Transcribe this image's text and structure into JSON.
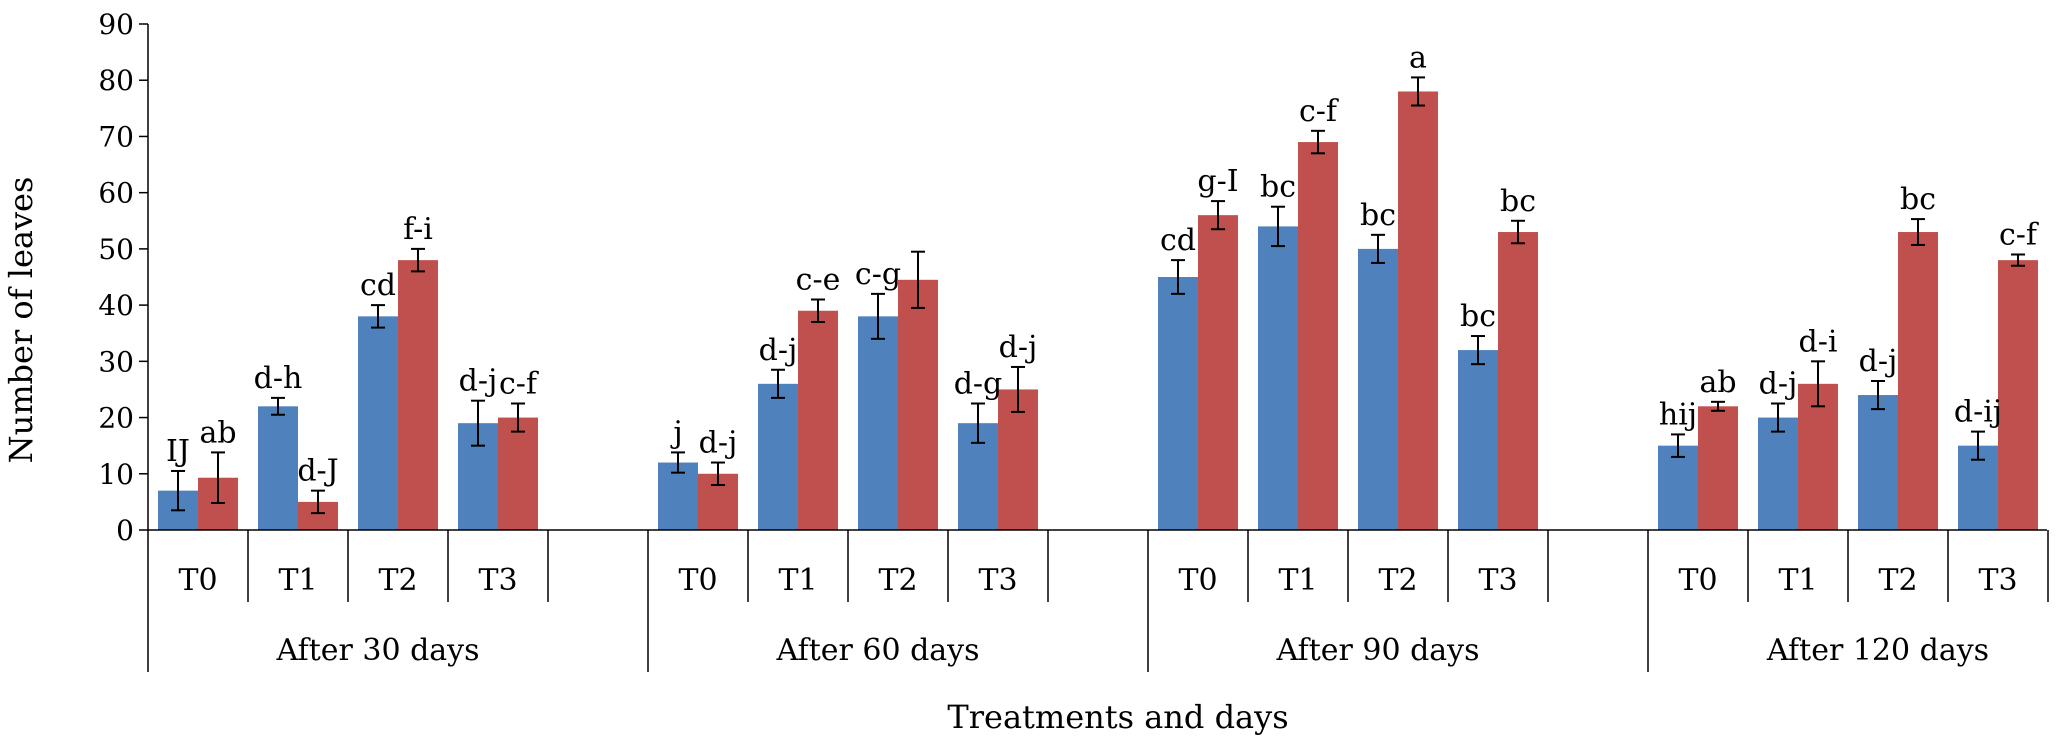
{
  "chart_data": {
    "type": "bar",
    "xlabel": "Treatments and days",
    "ylabel": "Number of leaves",
    "ylim": [
      0,
      90
    ],
    "yticks": [
      0,
      10,
      20,
      30,
      40,
      50,
      60,
      70,
      80,
      90
    ],
    "colors": {
      "series1": "#4f81bd",
      "series2": "#c0504d"
    },
    "groups": [
      {
        "label": "After 30 days",
        "categories": [
          "T0",
          "T1",
          "T2",
          "T3"
        ],
        "series1": {
          "values": [
            7,
            22,
            38,
            19
          ],
          "errors": [
            3.5,
            1.5,
            2,
            4
          ],
          "labels": [
            "IJ",
            "d-h",
            "cd",
            "d-j"
          ]
        },
        "series2": {
          "values": [
            9.3,
            5,
            48,
            20
          ],
          "errors": [
            4.5,
            2,
            2,
            2.5
          ],
          "labels": [
            "ab",
            "d-J",
            "f-i",
            "c-f"
          ]
        }
      },
      {
        "label": "After 60 days",
        "categories": [
          "T0",
          "T1",
          "T2",
          "T3"
        ],
        "series1": {
          "values": [
            12,
            26,
            38,
            19
          ],
          "errors": [
            1.8,
            2.5,
            4,
            3.5
          ],
          "labels": [
            "j",
            "d-j",
            "c-g",
            "d-g"
          ]
        },
        "series2": {
          "values": [
            10,
            39,
            44.5,
            25
          ],
          "errors": [
            2,
            2,
            5,
            4
          ],
          "labels": [
            "d-j",
            "c-e",
            "",
            "d-j"
          ]
        }
      },
      {
        "label": "After 90 days",
        "categories": [
          "T0",
          "T1",
          "T2",
          "T3"
        ],
        "series1": {
          "values": [
            45,
            54,
            50,
            32
          ],
          "errors": [
            3,
            3.5,
            2.5,
            2.5
          ],
          "labels": [
            "cd",
            "bc",
            "bc",
            "bc"
          ]
        },
        "series2": {
          "values": [
            56,
            69,
            78,
            53
          ],
          "errors": [
            2.5,
            2,
            2.5,
            2
          ],
          "labels": [
            "g-I",
            "c-f",
            "a",
            "bc"
          ]
        }
      },
      {
        "label": "After 120 days",
        "categories": [
          "T0",
          "T1",
          "T2",
          "T3"
        ],
        "series1": {
          "values": [
            15,
            20,
            24,
            15
          ],
          "errors": [
            2,
            2.5,
            2.5,
            2.5
          ],
          "labels": [
            "hij",
            "d-j",
            "d-j",
            "d-ij"
          ]
        },
        "series2": {
          "values": [
            22,
            26,
            53,
            48
          ],
          "errors": [
            0.8,
            4,
            2.3,
            1
          ],
          "labels": [
            "ab",
            "d-i",
            "bc",
            "c-f"
          ]
        }
      }
    ]
  }
}
